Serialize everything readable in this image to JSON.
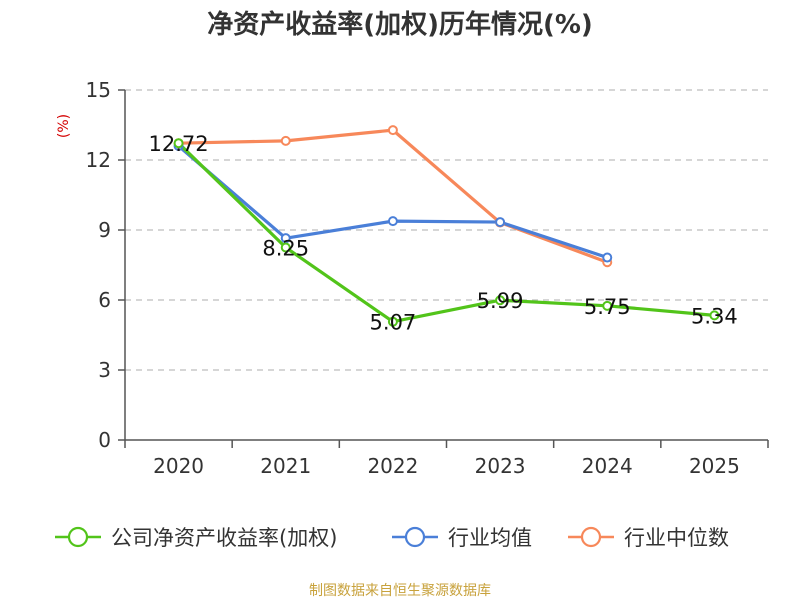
{
  "chart_data": {
    "type": "line",
    "title": "净资产收益率(加权)历年情况(%)",
    "ylabel": "(%)",
    "xlabel": "",
    "categories": [
      "2020",
      "2021",
      "2022",
      "2023",
      "2024",
      "2025"
    ],
    "ylim": [
      0,
      15
    ],
    "yticks": [
      0,
      3,
      6,
      9,
      12,
      15
    ],
    "grid": true,
    "legend_position": "bottom",
    "series": [
      {
        "name": "公司净资产收益率(加权)",
        "color": "#52c41a",
        "values": [
          12.72,
          8.25,
          5.07,
          5.99,
          5.75,
          5.34
        ],
        "labels": [
          "12.72",
          "8.25",
          "5.07",
          "5.99",
          "5.75",
          "5.34"
        ]
      },
      {
        "name": "行业均值",
        "color": "#4a7fd8",
        "values": [
          12.6,
          8.65,
          9.38,
          9.34,
          7.82,
          null
        ]
      },
      {
        "name": "行业中位数",
        "color": "#f7885a",
        "values": [
          12.72,
          12.82,
          13.28,
          9.32,
          7.62,
          null
        ]
      }
    ],
    "source": "制图数据来自恒生聚源数据库"
  }
}
